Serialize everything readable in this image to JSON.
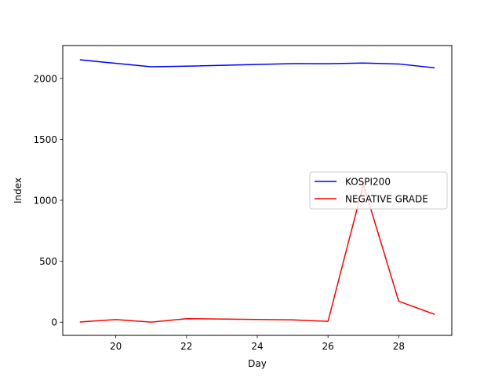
{
  "chart_data": {
    "type": "line",
    "title": "",
    "xlabel": "Day",
    "ylabel": "Index",
    "xlim": [
      18.5,
      29.5
    ],
    "ylim": [
      -108,
      2269
    ],
    "x_ticks": [
      20,
      22,
      24,
      26,
      28
    ],
    "y_ticks": [
      0,
      500,
      1000,
      1500,
      2000
    ],
    "grid": false,
    "legend_position": "center-right",
    "series": [
      {
        "name": "KOSPI200",
        "color": "#0000ff",
        "x": [
          19,
          20,
          21,
          22,
          25,
          26,
          27,
          28,
          29
        ],
        "y": [
          2152,
          2123,
          2095,
          2100,
          2121,
          2120,
          2126,
          2118,
          2087
        ]
      },
      {
        "name": "NEGATIVE GRADE",
        "color": "#ff0000",
        "x": [
          19,
          20,
          21,
          22,
          25,
          26,
          27,
          28,
          29
        ],
        "y": [
          2,
          22,
          1,
          29,
          19,
          7,
          1130,
          172,
          66
        ]
      }
    ]
  }
}
